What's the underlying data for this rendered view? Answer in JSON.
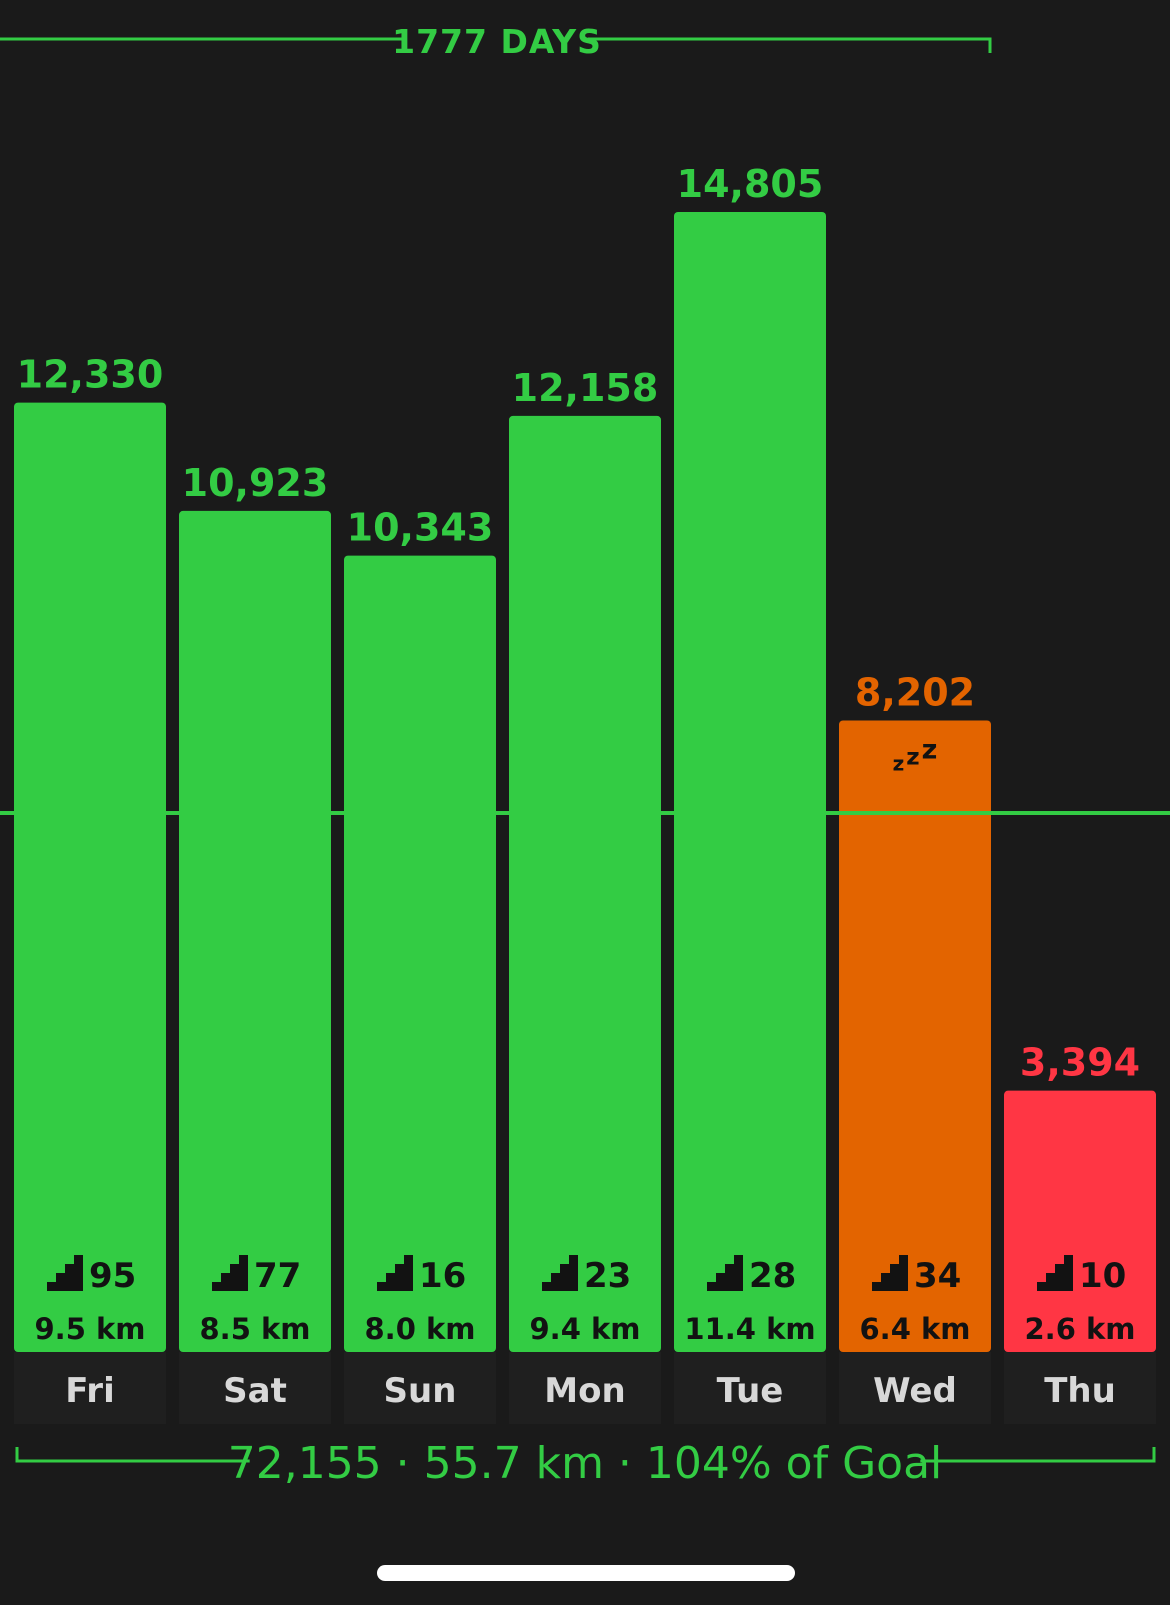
{
  "streak_label": "1777 DAYS",
  "summary_label": "72,155 · 55.7 km · 104% of Goal",
  "sleep_label": "zzz",
  "colors": {
    "background": "#1a1a1a",
    "goal_met": "#33cc44",
    "near_goal": "#e36400",
    "below_goal": "#ff3644",
    "stat_text": "#121212",
    "day_text": "#d8d8d8",
    "day_band": "#1f1f1f"
  },
  "chart_data": {
    "type": "bar",
    "ylim": [
      0,
      16000
    ],
    "goal": 7000,
    "categories": [
      "Fri",
      "Sat",
      "Sun",
      "Mon",
      "Tue",
      "Wed",
      "Thu"
    ],
    "series": [
      {
        "values": [
          12330,
          10923,
          10343,
          12158,
          14805,
          8202,
          3394
        ],
        "value_labels": [
          "12,330",
          "10,923",
          "10,343",
          "12,158",
          "14,805",
          "8,202",
          "3,394"
        ],
        "status": [
          "goal_met",
          "goal_met",
          "goal_met",
          "goal_met",
          "goal_met",
          "near_goal",
          "below_goal"
        ],
        "floors": [
          "95",
          "77",
          "16",
          "23",
          "28",
          "34",
          "10"
        ],
        "distance": [
          "9.5 km",
          "8.5 km",
          "8.0 km",
          "9.4 km",
          "11.4 km",
          "6.4 km",
          "2.6 km"
        ]
      }
    ],
    "sleep_marker_index": 5
  }
}
